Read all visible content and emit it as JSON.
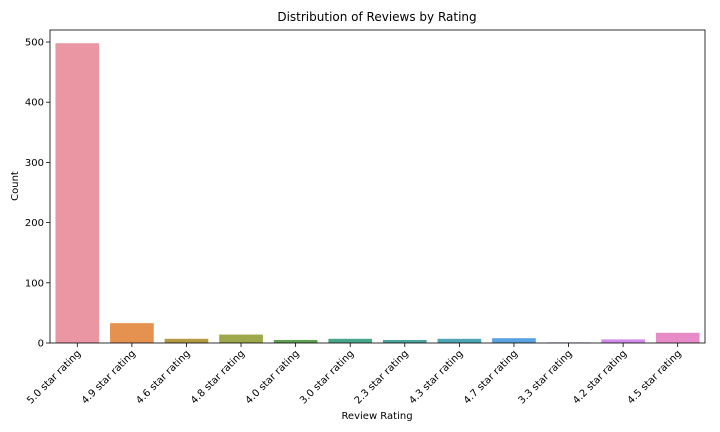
{
  "chart_data": {
    "type": "bar",
    "title": "Distribution of Reviews by Rating",
    "xlabel": "Review Rating",
    "ylabel": "Count",
    "ylim": [
      0,
      520
    ],
    "yticks": [
      "0",
      "100",
      "200",
      "300",
      "400",
      "500"
    ],
    "categories": [
      "5.0 star rating",
      "4.9 star rating",
      "4.6 star rating",
      "4.8 star rating",
      "4.0 star rating",
      "3.0 star rating",
      "2.3 star rating",
      "4.3 star rating",
      "4.7 star rating",
      "3.3 star rating",
      "4.2 star rating",
      "4.5 star rating"
    ],
    "values": [
      498,
      33,
      7,
      14,
      5,
      7,
      5,
      7,
      8,
      1,
      6,
      17
    ],
    "colors": [
      "#ea96a3",
      "#e5914f",
      "#b39a43",
      "#9ea74a",
      "#5ba150",
      "#4aa68a",
      "#4ba39e",
      "#4ea5b5",
      "#5ba3e0",
      "#9d9aee",
      "#d28ce8",
      "#e68bc8"
    ],
    "grid": false,
    "legend": "none"
  }
}
